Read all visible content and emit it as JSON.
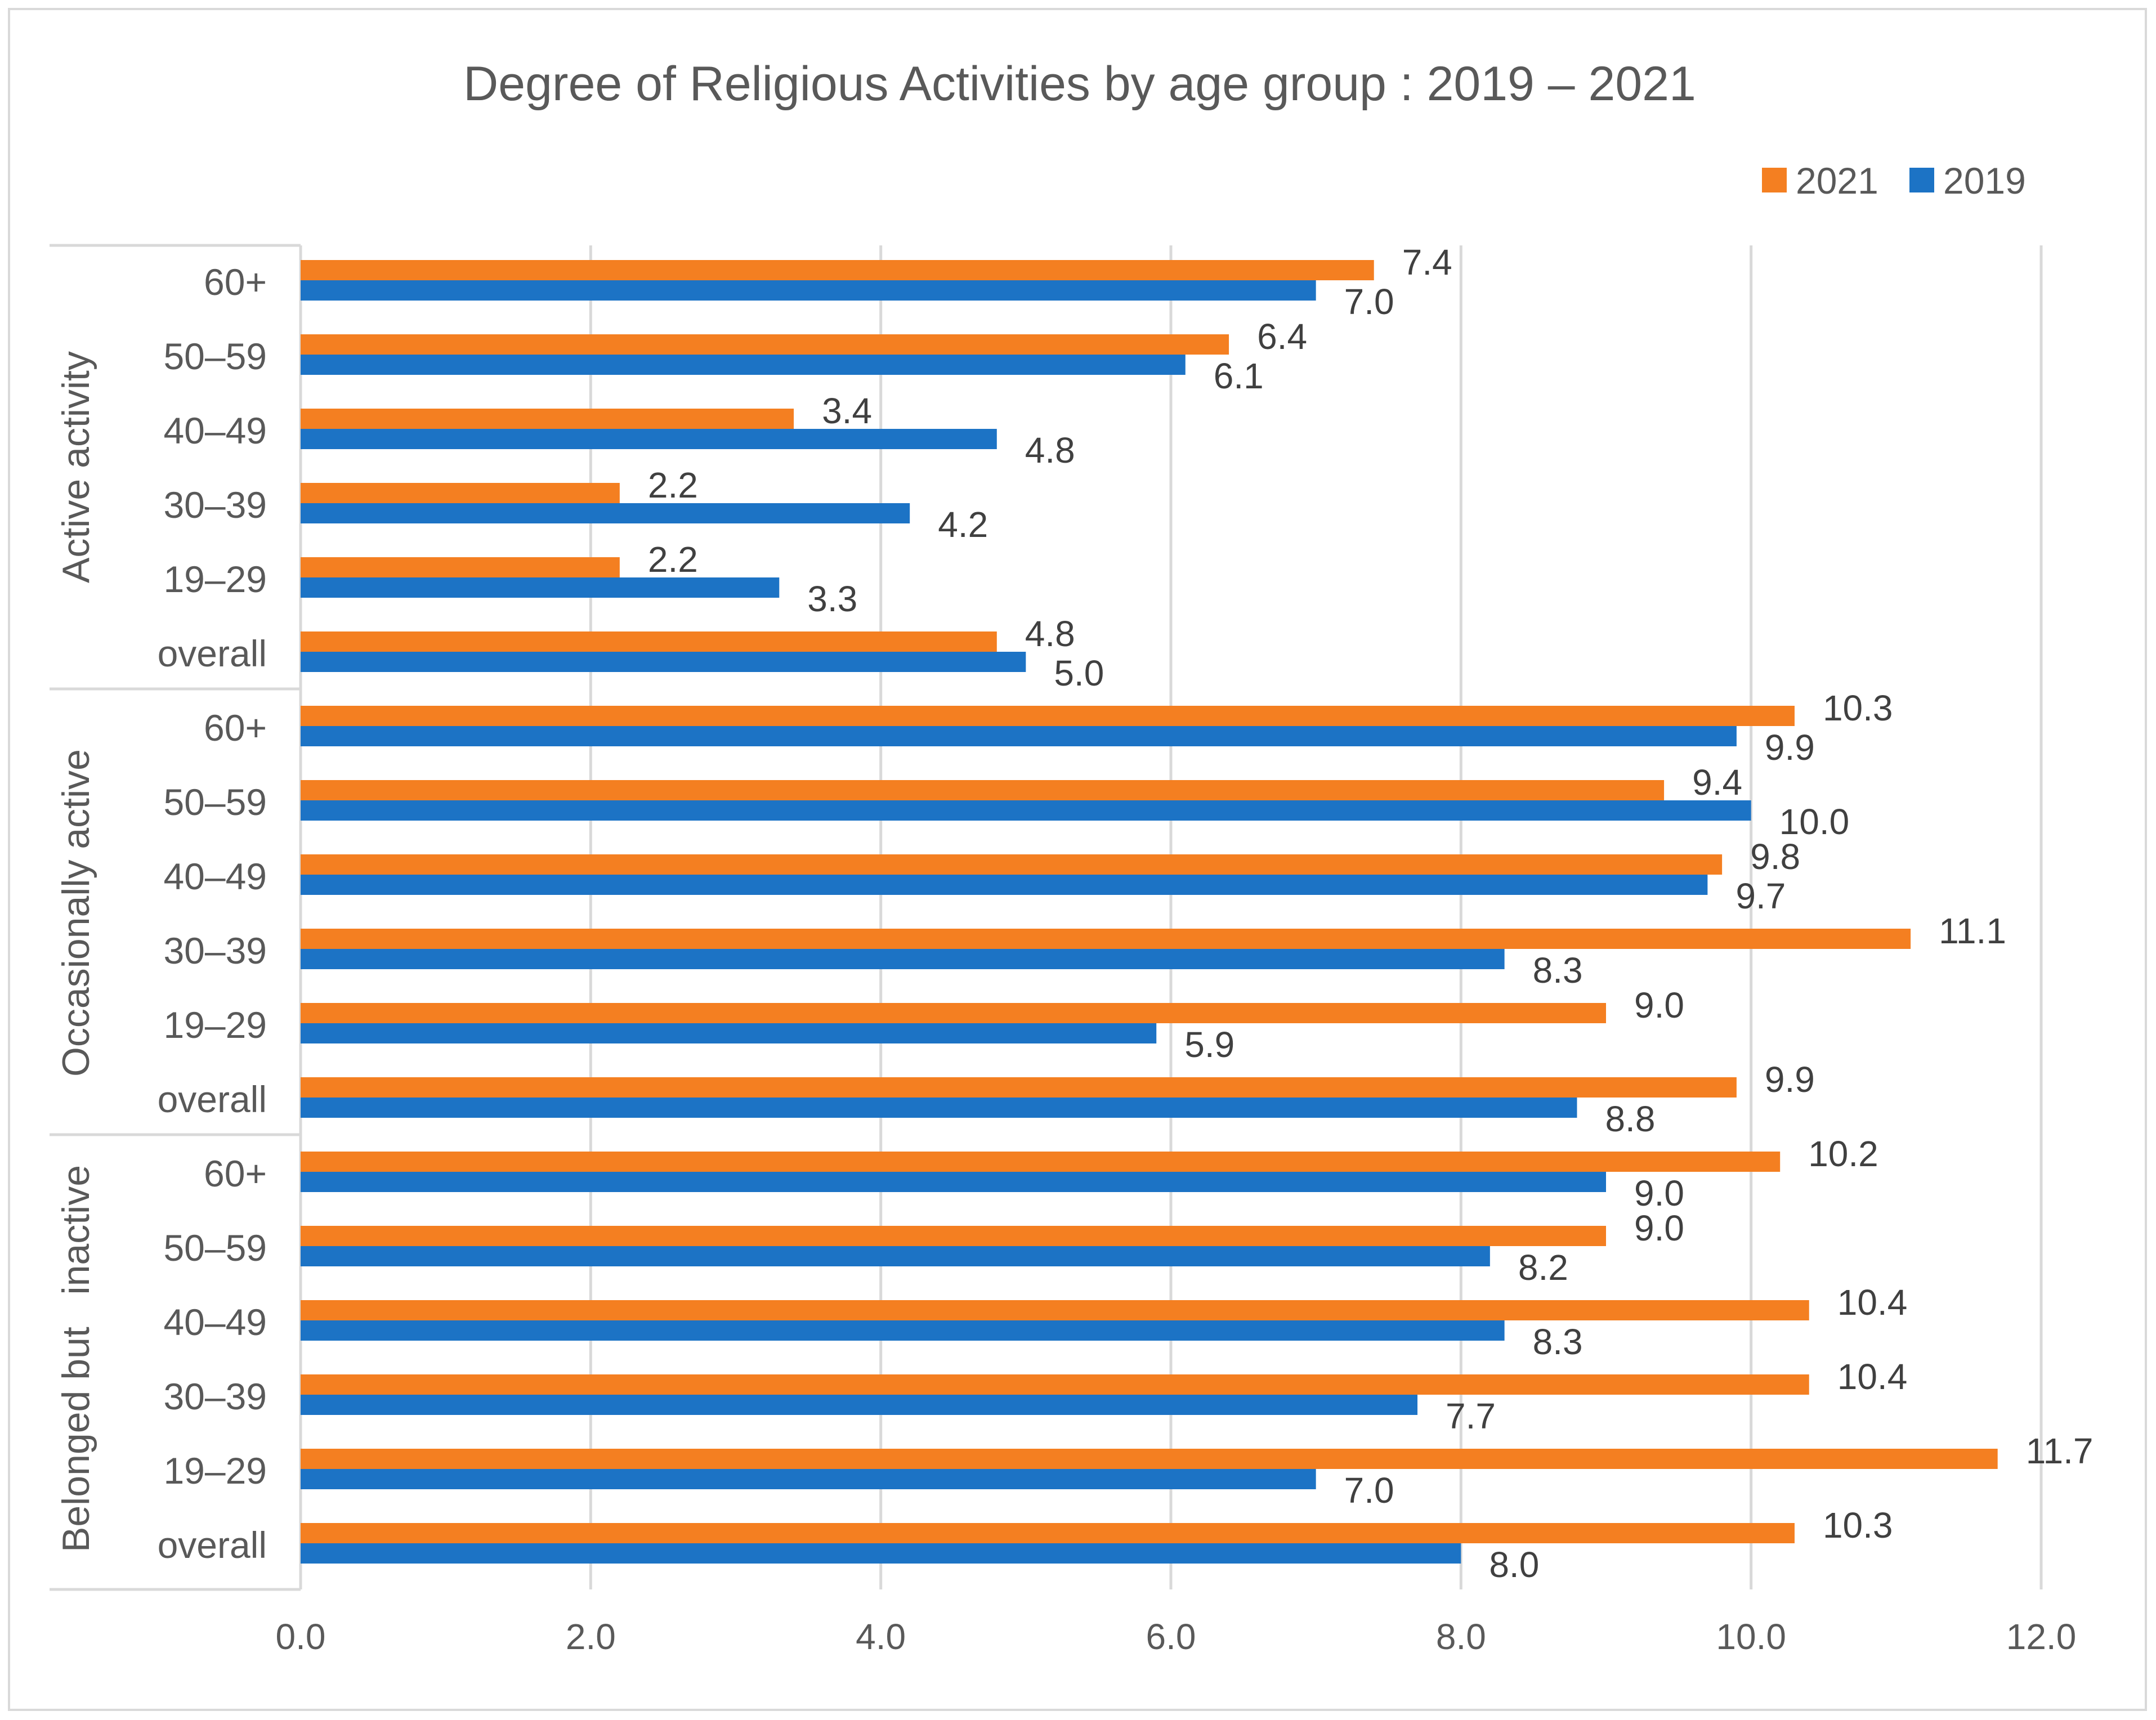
{
  "chart_data": {
    "type": "bar",
    "orientation": "horizontal",
    "title": "Degree of Religious Activities by age group : 2019 – 2021",
    "xlim": [
      0,
      12
    ],
    "xticks": [
      "0.0",
      "2.0",
      "4.0",
      "6.0",
      "8.0",
      "10.0",
      "12.0"
    ],
    "grid": true,
    "legend_position": "top-right",
    "series": [
      {
        "name": "2021",
        "color": "#f47f21"
      },
      {
        "name": "2019",
        "color": "#1c73c5"
      }
    ],
    "groups": [
      {
        "name": "Active activity",
        "categories": [
          {
            "label": "60+",
            "v2021": 7.4,
            "v2019": 7.0,
            "l2021": "7.4",
            "l2019": "7.0"
          },
          {
            "label": "50–59",
            "v2021": 6.4,
            "v2019": 6.1,
            "l2021": "6.4",
            "l2019": "6.1"
          },
          {
            "label": "40–49",
            "v2021": 3.4,
            "v2019": 4.8,
            "l2021": "3.4",
            "l2019": "4.8"
          },
          {
            "label": "30–39",
            "v2021": 2.2,
            "v2019": 4.2,
            "l2021": "2.2",
            "l2019": "4.2"
          },
          {
            "label": "19–29",
            "v2021": 2.2,
            "v2019": 3.3,
            "l2021": "2.2",
            "l2019": "3.3"
          },
          {
            "label": "overall",
            "v2021": 4.8,
            "v2019": 5.0,
            "l2021": "4.8",
            "l2019": "5.0"
          }
        ]
      },
      {
        "name": "Occasionally active",
        "categories": [
          {
            "label": "60+",
            "v2021": 10.3,
            "v2019": 9.9,
            "l2021": "10.3",
            "l2019": "9.9"
          },
          {
            "label": "50–59",
            "v2021": 9.4,
            "v2019": 10.0,
            "l2021": "9.4",
            "l2019": "10.0"
          },
          {
            "label": "40–49",
            "v2021": 9.8,
            "v2019": 9.7,
            "l2021": "9.8",
            "l2019": "9.7"
          },
          {
            "label": "30–39",
            "v2021": 11.1,
            "v2019": 8.3,
            "l2021": "11.1",
            "l2019": "8.3"
          },
          {
            "label": "19–29",
            "v2021": 9.0,
            "v2019": 5.9,
            "l2021": "9.0",
            "l2019": "5.9"
          },
          {
            "label": "overall",
            "v2021": 9.9,
            "v2019": 8.8,
            "l2021": "9.9",
            "l2019": "8.8"
          }
        ]
      },
      {
        "name": "Belonged but   inactive",
        "categories": [
          {
            "label": "60+",
            "v2021": 10.2,
            "v2019": 9.0,
            "l2021": "10.2",
            "l2019": "9.0"
          },
          {
            "label": "50–59",
            "v2021": 9.0,
            "v2019": 8.2,
            "l2021": "9.0",
            "l2019": "8.2"
          },
          {
            "label": "40–49",
            "v2021": 10.4,
            "v2019": 8.3,
            "l2021": "10.4",
            "l2019": "8.3"
          },
          {
            "label": "30–39",
            "v2021": 10.4,
            "v2019": 7.7,
            "l2021": "10.4",
            "l2019": "7.7"
          },
          {
            "label": "19–29",
            "v2021": 11.7,
            "v2019": 7.0,
            "l2021": "11.7",
            "l2019": "7.0"
          },
          {
            "label": "overall",
            "v2021": 10.3,
            "v2019": 8.0,
            "l2021": "10.3",
            "l2019": "8.0"
          }
        ]
      }
    ]
  }
}
